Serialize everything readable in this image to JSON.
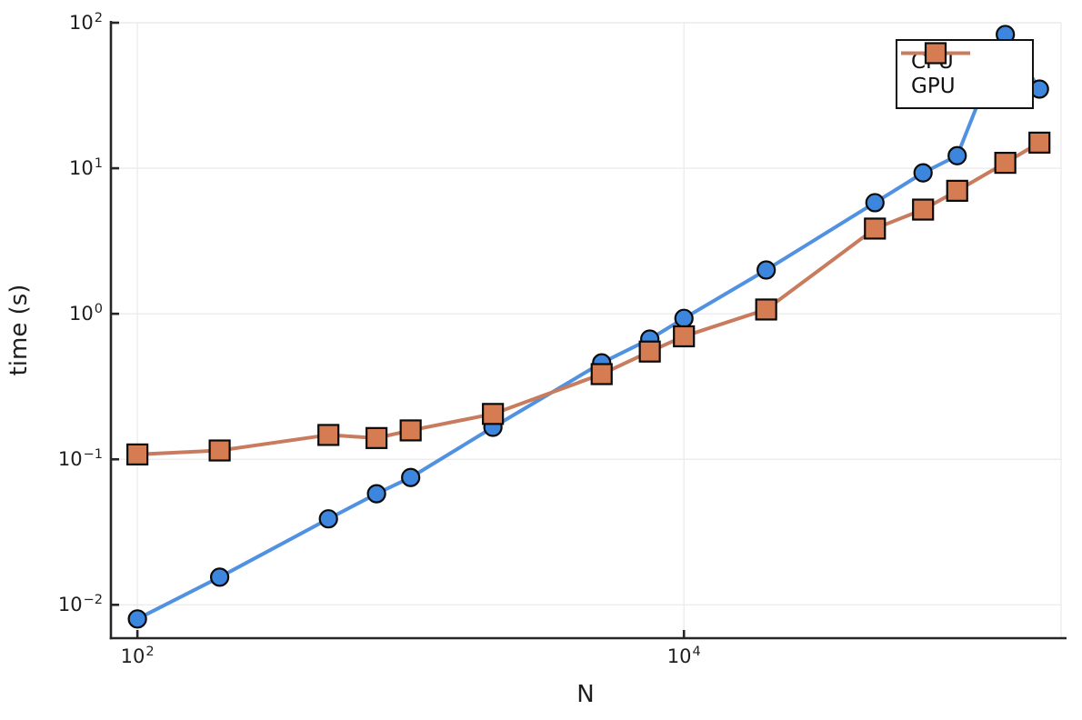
{
  "chart_data": {
    "type": "line",
    "title": "",
    "xlabel": "N",
    "ylabel": "time (s)",
    "xscale": "log10",
    "yscale": "log10",
    "xlim": [
      80,
      240000
    ],
    "ylim": [
      0.0059,
      100
    ],
    "grid": true,
    "legend_position": "top-right",
    "x_ticks": [
      {
        "base": "10",
        "exp": "2",
        "value": 100
      },
      {
        "base": "10",
        "exp": "4",
        "value": 10000
      }
    ],
    "y_ticks": [
      {
        "base": "10",
        "exp": "2",
        "value": 100
      },
      {
        "base": "10",
        "exp": "1",
        "value": 10
      },
      {
        "base": "10",
        "exp": "0",
        "value": 1
      },
      {
        "base": "10",
        "exp": "−1",
        "value": 0.1
      },
      {
        "base": "10",
        "exp": "−2",
        "value": 0.01
      }
    ],
    "x": [
      100,
      200,
      500,
      750,
      1000,
      2000,
      5000,
      7500,
      10000,
      20000,
      50000,
      75000,
      100000,
      150000,
      200000
    ],
    "series": [
      {
        "name": "CPU",
        "marker": "circle",
        "line_color": "#5091e2",
        "marker_color": "#3d86dd",
        "marker_stroke": "#0a0a0a",
        "values": [
          0.008,
          0.0155,
          0.039,
          0.058,
          0.075,
          0.166,
          0.46,
          0.67,
          0.93,
          2.0,
          5.8,
          9.3,
          12.2,
          83,
          35
        ]
      },
      {
        "name": "GPU",
        "marker": "square",
        "line_color": "#c97b5e",
        "marker_color": "#d67c52",
        "marker_stroke": "#0a0a0a",
        "values": [
          0.108,
          0.115,
          0.147,
          0.14,
          0.158,
          0.205,
          0.385,
          0.55,
          0.7,
          1.07,
          3.85,
          5.2,
          7.0,
          10.9,
          15.0
        ]
      }
    ],
    "style": {
      "grid_color": "#ececec",
      "spine_color": "#262626",
      "text_color": "#1e1e1e",
      "background": "#ffffff",
      "line_width": 4
    }
  }
}
